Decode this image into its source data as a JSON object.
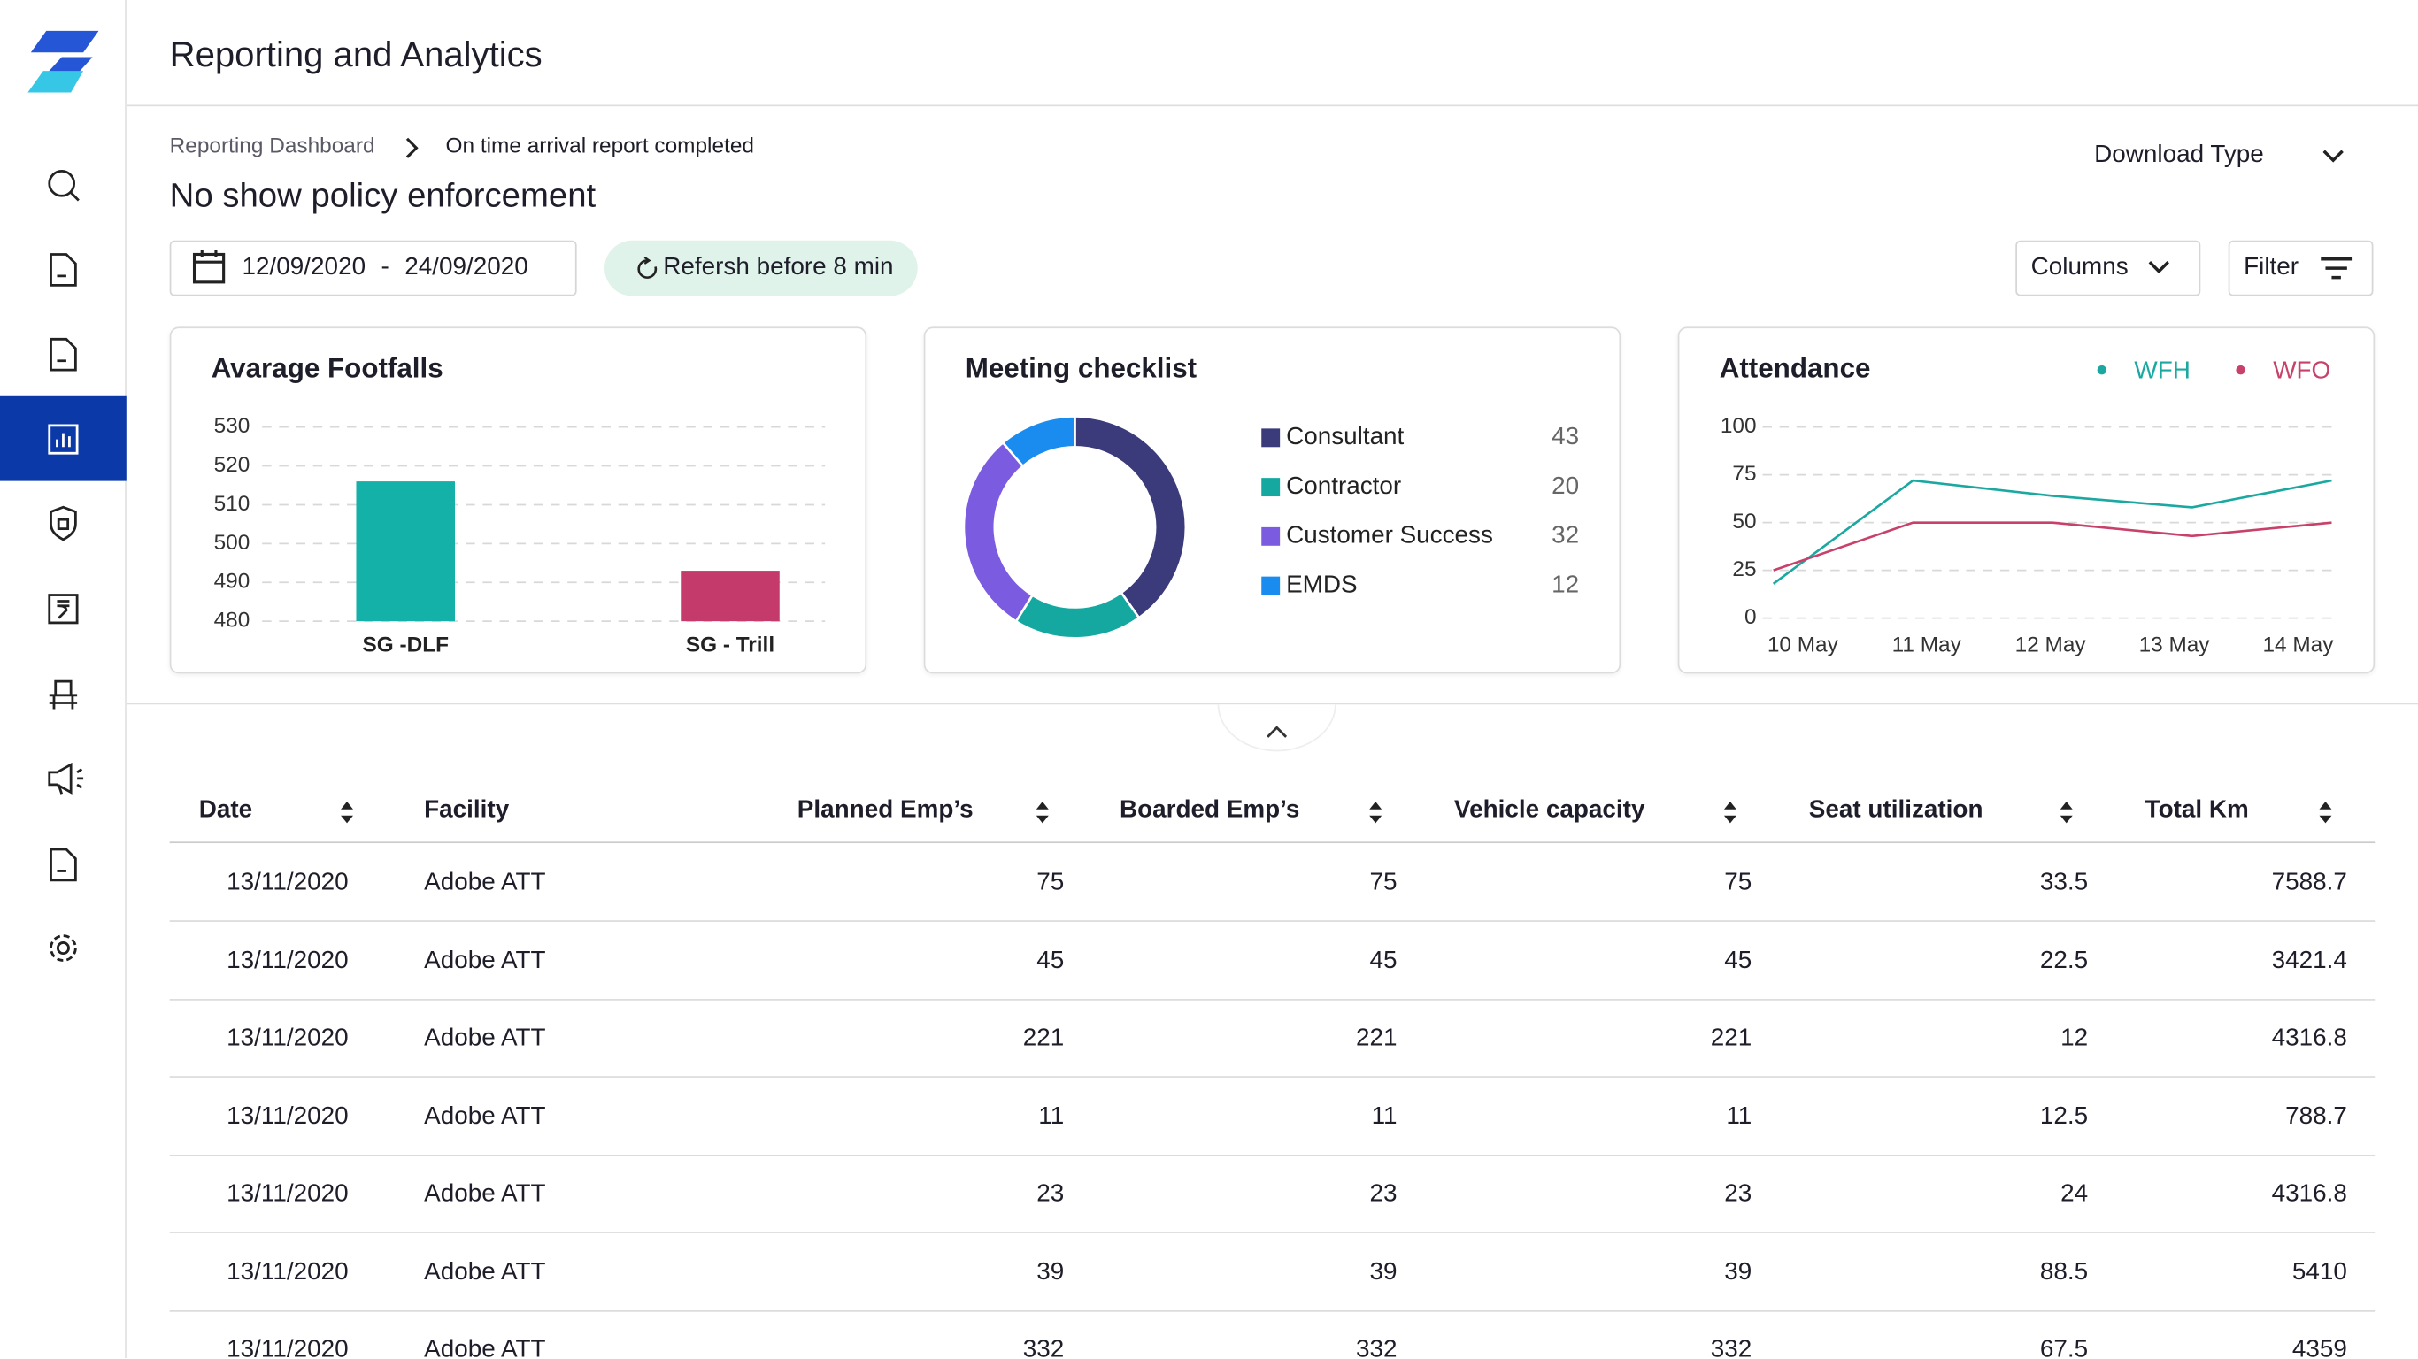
{
  "app_title": "Reporting and Analytics",
  "breadcrumb": [
    "Reporting Dashboard",
    "On time arrival report completed"
  ],
  "page_title": "No show policy enforcement",
  "download_type": "Download Type",
  "date_range": {
    "from": "12/09/2020",
    "separator": "-",
    "to": "24/09/2020"
  },
  "refresh": "Refersh before 8 min",
  "columns_button": "Columns",
  "filter_button": "Filter",
  "chart_data": [
    {
      "type": "bar",
      "title": "Avarage Footfalls",
      "categories": [
        "SG -DLF",
        "SG - Trill"
      ],
      "values": [
        516,
        493
      ],
      "colors": [
        "#14b1a8",
        "#c43b6b"
      ],
      "ylim": [
        480,
        530
      ],
      "yticks": [
        480,
        490,
        500,
        510,
        520,
        530
      ],
      "grid": true
    },
    {
      "type": "donut",
      "title": "Meeting checklist",
      "categories": [
        "Consultant",
        "Contractor",
        "Customer Success",
        "EMDS"
      ],
      "values": [
        43,
        20,
        32,
        12
      ],
      "colors": [
        "#3b3a7a",
        "#14a8a0",
        "#7b5be0",
        "#1a8cf0"
      ]
    },
    {
      "type": "line",
      "title": "Attendance",
      "categories": [
        "10 May",
        "11 May",
        "12 May",
        "13 May",
        "14 May"
      ],
      "series": [
        {
          "name": "WFH",
          "color": "#1aa8a0",
          "values": [
            18,
            72,
            64,
            58,
            72
          ]
        },
        {
          "name": "WFO",
          "color": "#c8416b",
          "values": [
            25,
            50,
            50,
            43,
            50
          ]
        }
      ],
      "ylim": [
        0,
        100
      ],
      "yticks": [
        0,
        25,
        50,
        75,
        100
      ],
      "grid": true
    }
  ],
  "table": {
    "columns": [
      "Date",
      "Facility",
      "Planned Emp’s",
      "Boarded Emp’s",
      "Vehicle capacity",
      "Seat utilization",
      "Total Km"
    ],
    "rows": [
      [
        "13/11/2020",
        "Adobe ATT",
        75,
        75,
        75,
        33.5,
        7588.7
      ],
      [
        "13/11/2020",
        "Adobe ATT",
        45,
        45,
        45,
        22.5,
        3421.4
      ],
      [
        "13/11/2020",
        "Adobe ATT",
        221,
        221,
        221,
        12,
        4316.8
      ],
      [
        "13/11/2020",
        "Adobe ATT",
        11,
        11,
        11,
        12.5,
        788.7
      ],
      [
        "13/11/2020",
        "Adobe ATT",
        23,
        23,
        23,
        24,
        4316.8
      ],
      [
        "13/11/2020",
        "Adobe ATT",
        39,
        39,
        39,
        88.5,
        5410
      ],
      [
        "13/11/2020",
        "Adobe ATT",
        332,
        332,
        332,
        67.5,
        4359
      ]
    ]
  }
}
